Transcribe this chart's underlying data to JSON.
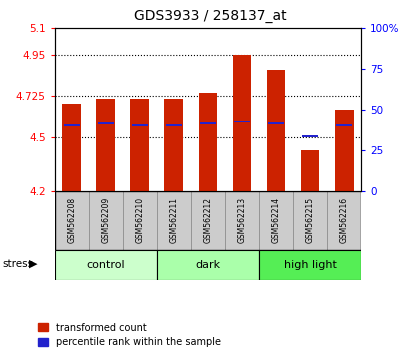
{
  "title": "GDS3933 / 258137_at",
  "samples": [
    "GSM562208",
    "GSM562209",
    "GSM562210",
    "GSM562211",
    "GSM562212",
    "GSM562213",
    "GSM562214",
    "GSM562215",
    "GSM562216"
  ],
  "groups": [
    {
      "name": "control",
      "color": "#ccffcc",
      "samples": [
        0,
        1,
        2
      ]
    },
    {
      "name": "dark",
      "color": "#aaffaa",
      "samples": [
        3,
        4,
        5
      ]
    },
    {
      "name": "high light",
      "color": "#55ee55",
      "samples": [
        6,
        7,
        8
      ]
    }
  ],
  "bar_values": [
    4.68,
    4.71,
    4.71,
    4.71,
    4.74,
    4.95,
    4.87,
    4.43,
    4.65
  ],
  "blue_values": [
    4.565,
    4.575,
    4.565,
    4.565,
    4.575,
    4.585,
    4.575,
    4.505,
    4.565
  ],
  "ylim_left": [
    4.2,
    5.1
  ],
  "yticks_left": [
    4.2,
    4.5,
    4.725,
    4.95,
    5.1
  ],
  "ytick_labels_left": [
    "4.2",
    "4.5",
    "4.725",
    "4.95",
    "5.1"
  ],
  "ylim_right": [
    0,
    100
  ],
  "yticks_right": [
    0,
    25,
    50,
    75,
    100
  ],
  "ytick_labels_right": [
    "0",
    "25",
    "50",
    "75",
    "100%"
  ],
  "gridlines": [
    4.5,
    4.725,
    4.95
  ],
  "bar_color": "#cc2200",
  "blue_color": "#2222cc",
  "bar_width": 0.55,
  "ybase": 4.2,
  "legend1": "transformed count",
  "legend2": "percentile rank within the sample"
}
